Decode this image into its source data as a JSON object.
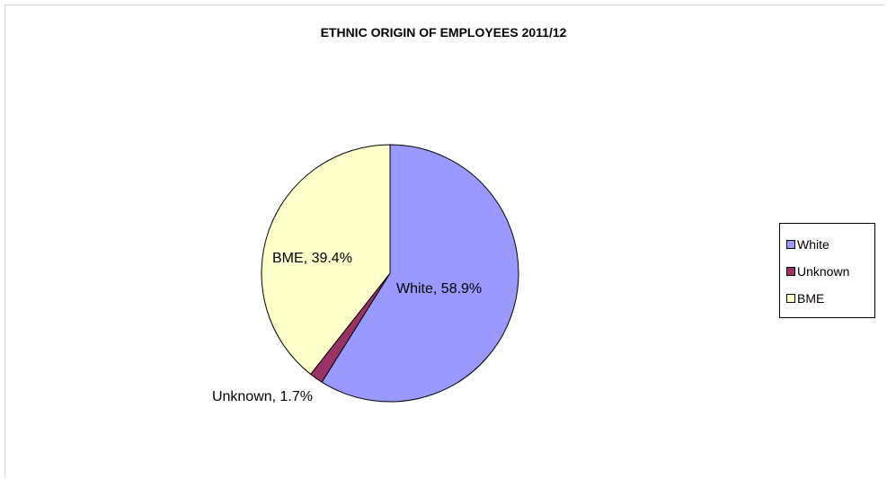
{
  "chart_data": {
    "type": "pie",
    "title": "ETHNIC ORIGIN OF EMPLOYEES 2011/12",
    "slices": [
      {
        "category": "White",
        "value": 58.9,
        "label": "White, 58.9%",
        "color": "#9999ff"
      },
      {
        "category": "Unknown",
        "value": 1.7,
        "label": "Unknown, 1.7%",
        "color": "#993366"
      },
      {
        "category": "BME",
        "value": 39.4,
        "label": "BME, 39.4%",
        "color": "#ffffcc"
      }
    ],
    "legend": {
      "position": "right",
      "entries": [
        "White",
        "Unknown",
        "BME"
      ]
    }
  }
}
